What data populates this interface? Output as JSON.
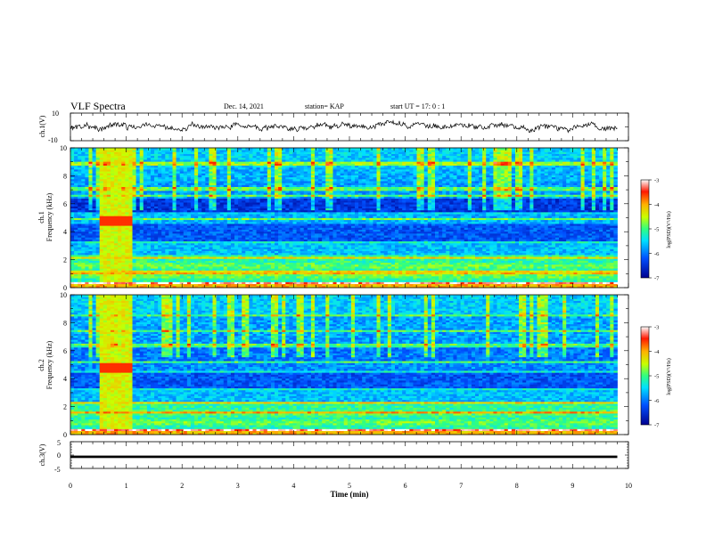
{
  "header": {
    "title": "VLF Spectra",
    "date": "Dec. 14, 2021",
    "station": "station= KAP",
    "start": "start  UT =   17: 0  : 1"
  },
  "chart_data": [
    {
      "type": "line",
      "title": "",
      "ylabel": "ch.1(V)",
      "ylim": [
        -10,
        10
      ],
      "yticks": [
        "10",
        "-10"
      ],
      "note": "noisy waveform, roughly between -5 and +5 V"
    },
    {
      "type": "heatmap",
      "ylabel_top": "ch.1",
      "ylabel": "Frequency (kHz)",
      "ylim": [
        0,
        10
      ],
      "yticks": [
        "0",
        "2",
        "4",
        "6",
        "8",
        "10"
      ],
      "colorbar": {
        "label": "log(PSD)(V²/Hz)",
        "range": [
          -7,
          -3
        ],
        "ticks": [
          "-3",
          "-4",
          "-5",
          "-6",
          "-7"
        ]
      },
      "burst_minutes": [
        0.5,
        1.1
      ]
    },
    {
      "type": "heatmap",
      "ylabel_top": "ch.2",
      "ylabel": "Frequency (kHz)",
      "ylim": [
        0,
        10
      ],
      "yticks": [
        "0",
        "2",
        "4",
        "6",
        "8",
        "10"
      ],
      "colorbar": {
        "label": "log(PSD)(V²/Hz)",
        "range": [
          -7,
          -3
        ],
        "ticks": [
          "-3",
          "-4",
          "-5",
          "-6",
          "-7"
        ]
      },
      "burst_minutes": [
        0.5,
        1.1
      ]
    },
    {
      "type": "line",
      "ylabel": "ch.3(V)",
      "ylim": [
        -5,
        5
      ],
      "yticks": [
        "5",
        "0",
        "-5"
      ],
      "note": "flat trace near -0.5 V"
    }
  ],
  "xaxis": {
    "label": "Time (min)",
    "range": [
      0,
      10
    ],
    "ticks": [
      "0",
      "1",
      "2",
      "3",
      "4",
      "5",
      "6",
      "7",
      "8",
      "9",
      "10"
    ],
    "data_end": 9.8
  }
}
